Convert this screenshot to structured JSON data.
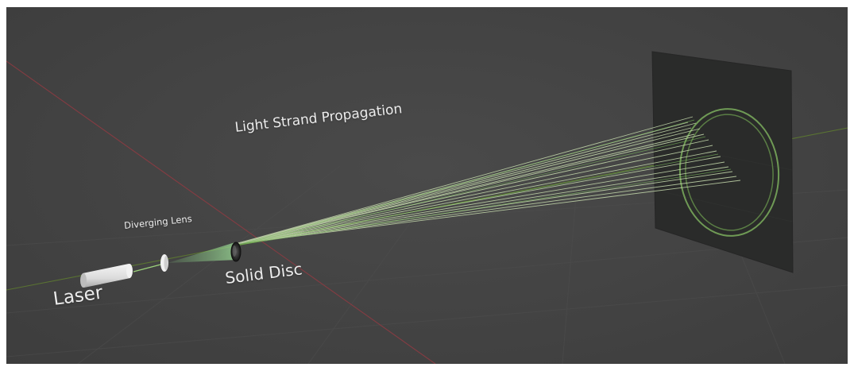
{
  "scene": {
    "title": "Light Strand Propagation",
    "labels": {
      "diverging_lens": "Diverging Lens",
      "solid_disc": "Solid Disc",
      "laser": "Laser"
    },
    "colors": {
      "background": "#444444",
      "grid_line": "#4d4d4d",
      "axis_red": "#8a3a40",
      "axis_green": "#5e7a2e",
      "screen": "#2b2c2b",
      "beam": "#bfd6a8",
      "laser_body": "#e4e4e4",
      "label_text": "#ececec"
    },
    "objects": [
      "laser",
      "diverging-lens",
      "solid-disc",
      "light-strands",
      "projection-screen",
      "ring-pattern"
    ]
  }
}
